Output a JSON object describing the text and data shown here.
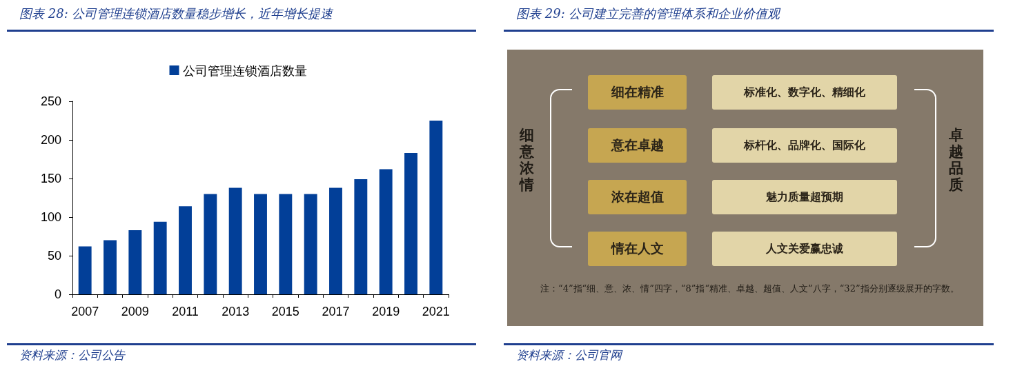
{
  "chart_data": [
    {
      "type": "bar",
      "title": "图表 28: 公司管理连锁酒店数量稳步增长，近年增长提速",
      "categories": [
        "2007",
        null,
        "2009",
        null,
        "2011",
        null,
        "2013",
        null,
        "2015",
        null,
        "2017",
        null,
        "2019",
        null,
        "2021"
      ],
      "series": [
        {
          "name": "公司管理连锁酒店数量",
          "color": "#023f98",
          "values": [
            62,
            70,
            83,
            94,
            114,
            130,
            138,
            130,
            130,
            130,
            138,
            149,
            162,
            183,
            225
          ]
        }
      ],
      "ylim": [
        0,
        250
      ],
      "yticks": [
        0,
        50,
        100,
        150,
        200,
        250
      ],
      "grid": false,
      "legend": "top",
      "annotations": [
        "资料来源：公司公告"
      ]
    },
    {
      "type": "other",
      "title": "图表 29: 公司建立完善的管理体系和企业价值观",
      "annotations": [
        "细在精准",
        "意在卓越",
        "浓在超值",
        "情在人文",
        "标准化、数字化、精细化",
        "标杆化、品牌化、国际化",
        "魅力质量超预期",
        "人文关爱赢忠诚",
        "细意浓情",
        "卓越品质",
        "注：“4”指“细、意、浓、情”四字，“8”指“精准、卓越、超值、人文”八字，“32”指分别逐级展开的字数。",
        "资料来源：公司官网"
      ]
    }
  ]
}
